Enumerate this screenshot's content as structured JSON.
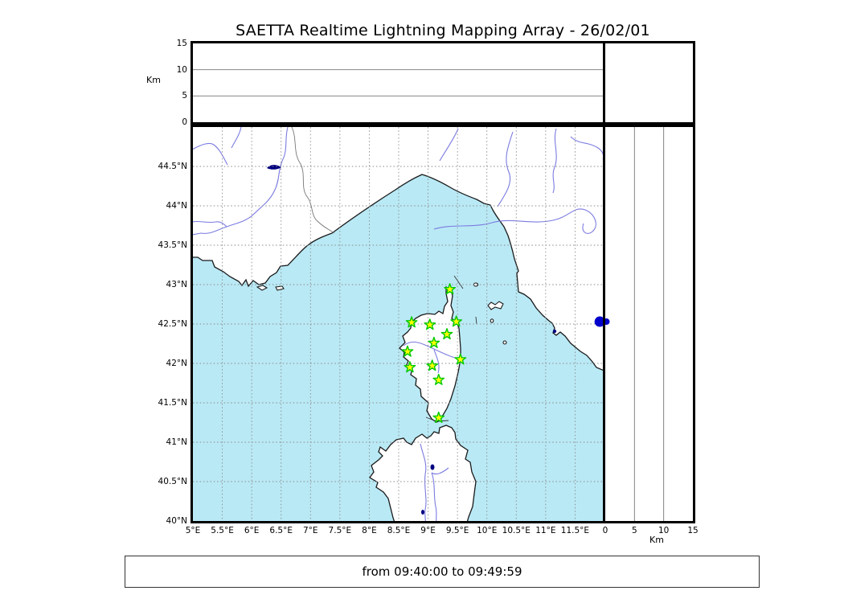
{
  "title": "SAETTA Realtime Lightning Mapping Array - 26/02/01",
  "footer": {
    "time_range": "from 09:40:00 to 09:49:59"
  },
  "altitude_panel": {
    "axis_label": "Km",
    "ticks": [
      {
        "label": "0",
        "value": 0
      },
      {
        "label": "5",
        "value": 5
      },
      {
        "label": "10",
        "value": 10
      },
      {
        "label": "15",
        "value": 15
      }
    ],
    "range_km": [
      0,
      15
    ],
    "gridlines_km": [
      5,
      10
    ]
  },
  "right_altitude_panel": {
    "axis_label": "Km",
    "ticks": [
      {
        "label": "0",
        "value": 0
      },
      {
        "label": "5",
        "value": 5
      },
      {
        "label": "10",
        "value": 10
      },
      {
        "label": "15",
        "value": 15
      }
    ],
    "range_km": [
      0,
      15
    ],
    "gridlines_km": [
      5,
      10
    ]
  },
  "map": {
    "lon_range": [
      5,
      12
    ],
    "lat_range": [
      40,
      45
    ],
    "grid_step_deg": 0.5,
    "lon_ticks": [
      {
        "label": "5°E",
        "value": 5
      },
      {
        "label": "5.5°E",
        "value": 5.5
      },
      {
        "label": "6°E",
        "value": 6
      },
      {
        "label": "6.5°E",
        "value": 6.5
      },
      {
        "label": "7°E",
        "value": 7
      },
      {
        "label": "7.5°E",
        "value": 7.5
      },
      {
        "label": "8°E",
        "value": 8
      },
      {
        "label": "8.5°E",
        "value": 8.5
      },
      {
        "label": "9°E",
        "value": 9
      },
      {
        "label": "9.5°E",
        "value": 9.5
      },
      {
        "label": "10°E",
        "value": 10
      },
      {
        "label": "10.5°E",
        "value": 10.5
      },
      {
        "label": "11°E",
        "value": 11
      },
      {
        "label": "11.5°E",
        "value": 11.5
      }
    ],
    "lat_ticks": [
      {
        "label": "44.5°N",
        "value": 44.5
      },
      {
        "label": "44°N",
        "value": 44
      },
      {
        "label": "43.5°N",
        "value": 43.5
      },
      {
        "label": "43°N",
        "value": 43
      },
      {
        "label": "42.5°N",
        "value": 42.5
      },
      {
        "label": "42°N",
        "value": 42
      },
      {
        "label": "41.5°N",
        "value": 41.5
      },
      {
        "label": "41°N",
        "value": 41
      },
      {
        "label": "40.5°N",
        "value": 40.5
      },
      {
        "label": "40°N",
        "value": 40
      }
    ],
    "colors": {
      "sea": "#B9E9F5",
      "land": "#FFFFFF",
      "coast": "#1a1a1a",
      "river": "#7B7BE0",
      "grid": "#8a8a8a",
      "border_line": "#777777",
      "lake": "#000080",
      "station_fill": "#FFFF00",
      "station_edge": "#00C800",
      "event": "#0000CC"
    },
    "stations": [
      {
        "lon": 9.37,
        "lat": 42.94
      },
      {
        "lon": 8.72,
        "lat": 42.52
      },
      {
        "lon": 9.03,
        "lat": 42.49
      },
      {
        "lon": 9.48,
        "lat": 42.53
      },
      {
        "lon": 9.32,
        "lat": 42.37
      },
      {
        "lon": 9.1,
        "lat": 42.26
      },
      {
        "lon": 8.65,
        "lat": 42.15
      },
      {
        "lon": 9.55,
        "lat": 42.05
      },
      {
        "lon": 8.69,
        "lat": 41.95
      },
      {
        "lon": 9.07,
        "lat": 41.97
      },
      {
        "lon": 9.18,
        "lat": 41.79
      },
      {
        "lon": 9.18,
        "lat": 41.31
      }
    ],
    "event_marker": {
      "lon": 11.92,
      "lat": 42.53,
      "altitude_km": 0
    }
  }
}
